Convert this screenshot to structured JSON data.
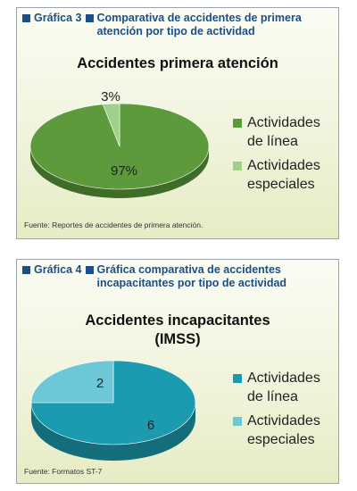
{
  "chart_data": [
    {
      "type": "pie",
      "figure_number": "Gráfica 3",
      "figure_title_line1": "Comparativa de accidentes de primera",
      "figure_title_line2": "atención por tipo de actividad",
      "title_line1": "Accidentes primera atención",
      "title_line2": "",
      "categories": [
        "Actividades de línea",
        "Actividades especiales"
      ],
      "legend": [
        {
          "line1": "Actividades",
          "line2": "de línea"
        },
        {
          "line1": "Actividades",
          "line2": "especiales"
        }
      ],
      "values": [
        97,
        3
      ],
      "data_labels": [
        "97%",
        "3%"
      ],
      "colors": [
        "#5c9a3c",
        "#9fd08a"
      ],
      "legend_position": "right",
      "source": "Fuente: Reportes de accidentes de primera atención."
    },
    {
      "type": "pie",
      "figure_number": "Gráfica 4",
      "figure_title_line1": "Gráfica comparativa de accidentes",
      "figure_title_line2": "incapacitantes por tipo de actividad",
      "title_line1": "Accidentes incapacitantes",
      "title_line2": "(IMSS)",
      "categories": [
        "Actividades de línea",
        "Actividades especiales"
      ],
      "legend": [
        {
          "line1": "Actividades",
          "line2": "de línea"
        },
        {
          "line1": "Actividades",
          "line2": "especiales"
        }
      ],
      "values": [
        6,
        2
      ],
      "data_labels": [
        "6",
        "2"
      ],
      "colors": [
        "#1c9bb0",
        "#6cc7d8"
      ],
      "legend_position": "right",
      "source": "Fuente: Formatos ST-7"
    }
  ]
}
